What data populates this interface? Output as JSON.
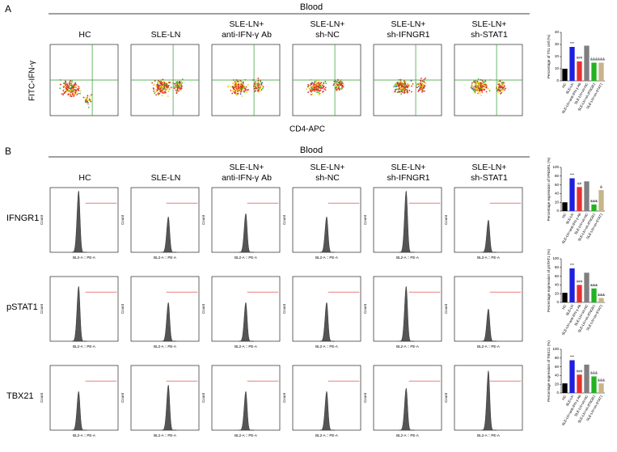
{
  "panel_a": {
    "label": "A",
    "title": "Blood",
    "columns": [
      [
        "HC"
      ],
      [
        "SLE-LN"
      ],
      [
        "SLE-LN+",
        "anti-IFN-γ Ab"
      ],
      [
        "SLE-LN+",
        "sh-NC"
      ],
      [
        "SLE-LN+",
        "sh-IFNGR1"
      ],
      [
        "SLE-LN+",
        "sh-STAT1"
      ]
    ],
    "y_label": "FITC-IFN-γ",
    "x_label": "CD4-APC"
  },
  "panel_b": {
    "label": "B",
    "title": "Blood",
    "columns": [
      [
        "HC"
      ],
      [
        "SLE-LN"
      ],
      [
        "SLE-LN+",
        "anti-IFN-γ Ab"
      ],
      [
        "SLE-LN+",
        "sh-NC"
      ],
      [
        "SLE-LN+",
        "sh-IFNGR1"
      ],
      [
        "SLE-LN+",
        "sh-STAT1"
      ]
    ],
    "rows": [
      "IFNGR1",
      "pSTAT1",
      "TBX21"
    ],
    "hist_y_label": "Count",
    "hist_x_label": "BL2-A :: PE-A"
  },
  "chart_data": [
    {
      "type": "bar",
      "y_label": "Percentage of Th1 cell (%)",
      "categories": [
        "HC",
        "SLE-LN",
        "SLE-LN+anti-IFN-γ Ab",
        "SLE-LN+sh-NC",
        "SLE-LN+sh-IFNGR1",
        "SLE-LN+sh-STAT1"
      ],
      "colors": [
        "#000000",
        "#1f1fe0",
        "#e83030",
        "#7f7f7f",
        "#22b222",
        "#c8b48a"
      ],
      "values": [
        10,
        28,
        16,
        29,
        15,
        15
      ],
      "annotations": [
        null,
        "***",
        "###",
        null,
        "&&&",
        "&&&"
      ],
      "ylim": [
        0,
        40
      ],
      "yticks": [
        0,
        10,
        20,
        30,
        40
      ]
    },
    {
      "type": "bar",
      "y_label": "Percentage expression of IFNGR1 (%)",
      "categories": [
        "HC",
        "SLE-LN",
        "SLE-LN+anti-IFN-γ Ab",
        "SLE-LN+sh-NC",
        "SLE-LN+sh-IFNGR1",
        "SLE-LN+sh-STAT1"
      ],
      "colors": [
        "#000000",
        "#1f1fe0",
        "#e83030",
        "#7f7f7f",
        "#22b222",
        "#c8b48a"
      ],
      "values": [
        20,
        75,
        55,
        68,
        15,
        48
      ],
      "annotations": [
        null,
        "***",
        "##",
        null,
        "&&&",
        "&"
      ],
      "ylim": [
        0,
        100
      ],
      "yticks": [
        0,
        20,
        40,
        60,
        80,
        100
      ]
    },
    {
      "type": "bar",
      "y_label": "Percentage expression of pSTAT1 (%)",
      "categories": [
        "HC",
        "SLE-LN",
        "SLE-LN+anti-IFN-γ Ab",
        "SLE-LN+sh-NC",
        "SLE-LN+sh-IFNGR1",
        "SLE-LN+sh-STAT1"
      ],
      "colors": [
        "#000000",
        "#1f1fe0",
        "#e83030",
        "#7f7f7f",
        "#22b222",
        "#c8b48a"
      ],
      "values": [
        22,
        78,
        40,
        68,
        32,
        10
      ],
      "annotations": [
        null,
        "***",
        "###",
        null,
        "&&&",
        "&&&"
      ],
      "ylim": [
        0,
        100
      ],
      "yticks": [
        0,
        20,
        40,
        60,
        80,
        100
      ]
    },
    {
      "type": "bar",
      "y_label": "Percentage expression of TBX21 (%)",
      "categories": [
        "HC",
        "SLE-LN",
        "SLE-LN+anti-IFN-γ Ab",
        "SLE-LN+sh-NC",
        "SLE-LN+sh-IFNGR1",
        "SLE-LN+sh-STAT1"
      ],
      "colors": [
        "#000000",
        "#1f1fe0",
        "#e83030",
        "#7f7f7f",
        "#22b222",
        "#c8b48a"
      ],
      "values": [
        22,
        75,
        42,
        65,
        38,
        22
      ],
      "annotations": [
        null,
        "***",
        "###",
        null,
        "&&&",
        "&&&"
      ],
      "ylim": [
        0,
        100
      ],
      "yticks": [
        0,
        20,
        40,
        60,
        80,
        100
      ]
    }
  ]
}
